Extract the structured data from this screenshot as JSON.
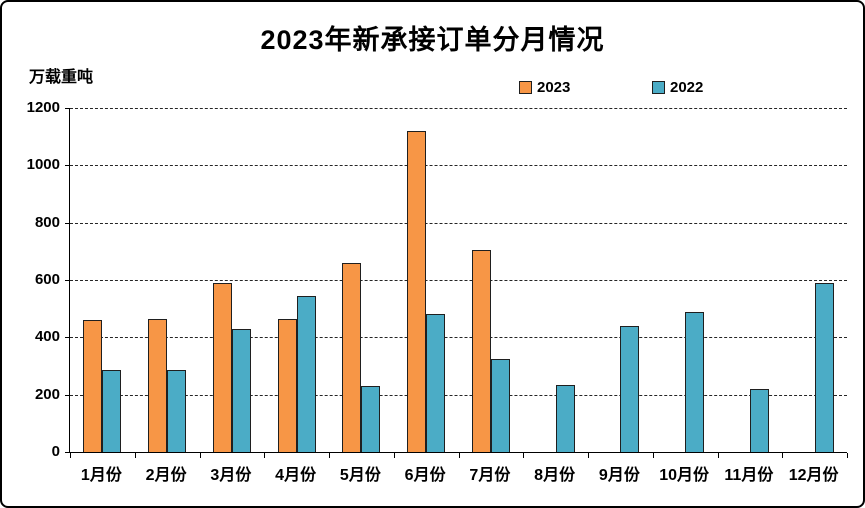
{
  "frame": {
    "background": "#ffffff",
    "border_color": "#000000"
  },
  "chart_data": {
    "type": "bar",
    "title": "2023年新承接订单分月情况",
    "unit_label": "万载重吨",
    "xlabel": "",
    "ylabel": "万载重吨",
    "categories": [
      "1月份",
      "2月份",
      "3月份",
      "4月份",
      "5月份",
      "6月份",
      "7月份",
      "8月份",
      "9月份",
      "10月份",
      "11月份",
      "12月份"
    ],
    "series": [
      {
        "name": "2023",
        "color": "#F79646",
        "values": [
          460,
          465,
          590,
          465,
          660,
          1120,
          705,
          null,
          null,
          null,
          null,
          null
        ]
      },
      {
        "name": "2022",
        "color": "#4BACC6",
        "values": [
          285,
          285,
          430,
          545,
          230,
          480,
          325,
          235,
          440,
          490,
          220,
          590
        ]
      }
    ],
    "ylim": [
      0,
      1200
    ],
    "yticks": [
      0,
      200,
      400,
      600,
      800,
      1000,
      1200
    ],
    "grid": "horizontal-dashed",
    "legend_position": "top-center",
    "gridline_color": "#262626",
    "bar_border_color": "#1f1f1f"
  }
}
